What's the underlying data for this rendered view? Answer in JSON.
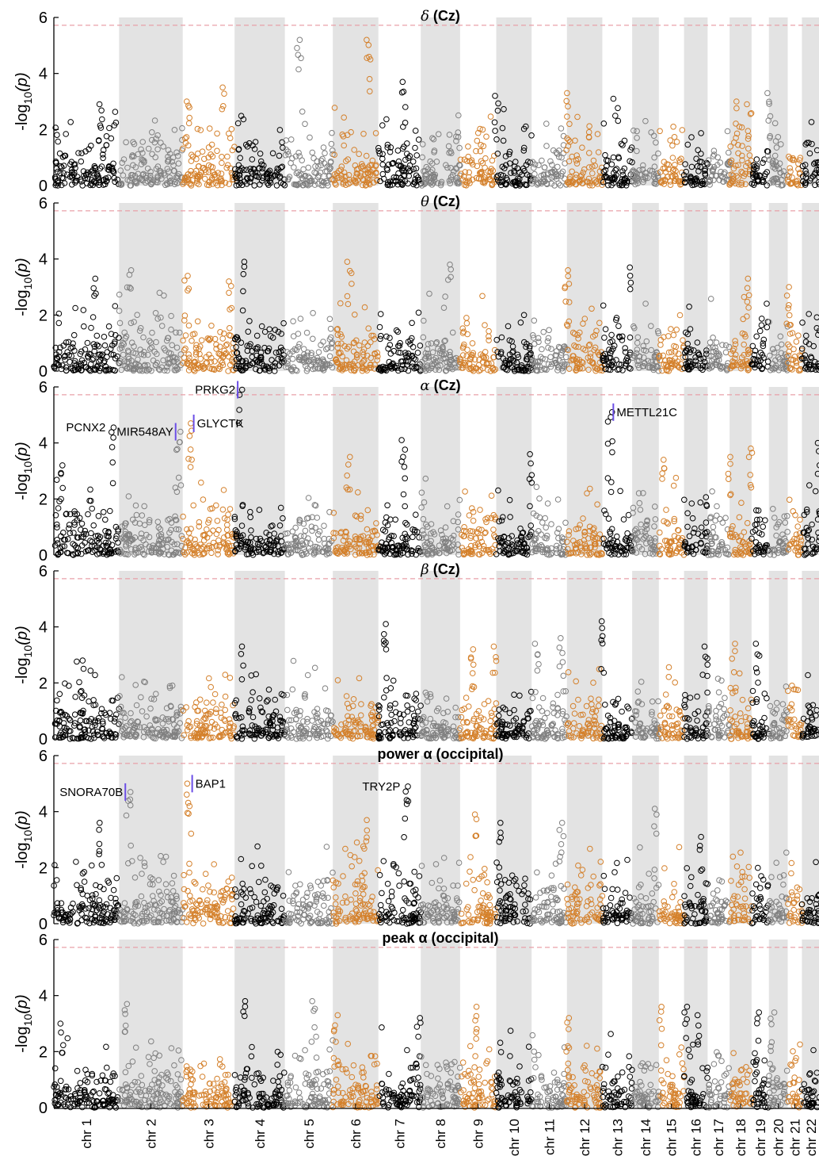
{
  "figure": {
    "ylabel_prefix": "-log",
    "ylabel_sub": "10",
    "ylabel_suffix": "(p)"
  },
  "chart_data": {
    "type": "scatter",
    "chart_kind": "manhattan",
    "ylim": [
      0,
      6
    ],
    "yticks": [
      0,
      2,
      4,
      6
    ],
    "significance_threshold": 5.72,
    "threshold_style": "dashed pink line",
    "grid": false,
    "marker": "open circle",
    "colors": {
      "black": "#000000",
      "gray": "#808080",
      "orange": "#d4802b",
      "shade": "#e3e3e3",
      "threshold": "#e8a0a8",
      "marker_line": "#6b4ee6"
    },
    "chromosomes": [
      {
        "label": "chr 1",
        "start": 0.0,
        "end": 0.083,
        "color": "black"
      },
      {
        "label": "chr 2",
        "start": 0.083,
        "end": 0.164,
        "color": "gray",
        "shaded": true
      },
      {
        "label": "chr 3",
        "start": 0.164,
        "end": 0.23,
        "color": "orange"
      },
      {
        "label": "chr 4",
        "start": 0.23,
        "end": 0.294,
        "color": "black",
        "shaded": true
      },
      {
        "label": "chr 5",
        "start": 0.294,
        "end": 0.355,
        "color": "gray"
      },
      {
        "label": "chr 6",
        "start": 0.355,
        "end": 0.413,
        "color": "orange",
        "shaded": true
      },
      {
        "label": "chr 7",
        "start": 0.413,
        "end": 0.467,
        "color": "black"
      },
      {
        "label": "chr 8",
        "start": 0.467,
        "end": 0.517,
        "color": "gray",
        "shaded": true
      },
      {
        "label": "chr 9",
        "start": 0.517,
        "end": 0.563,
        "color": "orange"
      },
      {
        "label": "chr 10",
        "start": 0.563,
        "end": 0.608,
        "color": "black",
        "shaded": true
      },
      {
        "label": "chr 11",
        "start": 0.608,
        "end": 0.653,
        "color": "gray"
      },
      {
        "label": "chr 12",
        "start": 0.653,
        "end": 0.698,
        "color": "orange",
        "shaded": true
      },
      {
        "label": "chr 13",
        "start": 0.698,
        "end": 0.736,
        "color": "black"
      },
      {
        "label": "chr 14",
        "start": 0.736,
        "end": 0.77,
        "color": "gray",
        "shaded": true
      },
      {
        "label": "chr 15",
        "start": 0.77,
        "end": 0.802,
        "color": "orange"
      },
      {
        "label": "chr 16",
        "start": 0.802,
        "end": 0.832,
        "color": "black",
        "shaded": true
      },
      {
        "label": "chr 17",
        "start": 0.832,
        "end": 0.86,
        "color": "gray"
      },
      {
        "label": "chr 18",
        "start": 0.86,
        "end": 0.888,
        "color": "orange",
        "shaded": true
      },
      {
        "label": "chr 19",
        "start": 0.888,
        "end": 0.91,
        "color": "black"
      },
      {
        "label": "chr 20",
        "start": 0.91,
        "end": 0.934,
        "color": "gray",
        "shaded": true
      },
      {
        "label": "chr 21",
        "start": 0.934,
        "end": 0.952,
        "color": "orange"
      },
      {
        "label": "chr 22",
        "start": 0.952,
        "end": 0.975,
        "color": "black",
        "shaded": true
      }
    ],
    "panels": [
      {
        "title_symbol": "δ",
        "title_text": " (Cz)",
        "title_italic_symbol": true,
        "seed": 11,
        "peaks": [
          {
            "pos": 0.312,
            "y": 5.2
          },
          {
            "pos": 0.4,
            "y": 5.2
          },
          {
            "pos": 0.445,
            "y": 3.7
          },
          {
            "pos": 0.214,
            "y": 3.5
          },
          {
            "pos": 0.563,
            "y": 3.2
          },
          {
            "pos": 0.655,
            "y": 3.3
          },
          {
            "pos": 0.715,
            "y": 3.1
          },
          {
            "pos": 0.17,
            "y": 3.0
          },
          {
            "pos": 0.06,
            "y": 2.9
          },
          {
            "pos": 0.885,
            "y": 2.9
          },
          {
            "pos": 0.868,
            "y": 3.0
          },
          {
            "pos": 0.91,
            "y": 3.3
          }
        ],
        "labels": []
      },
      {
        "title_symbol": "θ",
        "title_text": " (Cz)",
        "title_italic_symbol": true,
        "seed": 23,
        "peaks": [
          {
            "pos": 0.242,
            "y": 3.9
          },
          {
            "pos": 0.376,
            "y": 3.9
          },
          {
            "pos": 0.504,
            "y": 3.8
          },
          {
            "pos": 0.096,
            "y": 3.6
          },
          {
            "pos": 0.735,
            "y": 3.7
          },
          {
            "pos": 0.653,
            "y": 3.6
          },
          {
            "pos": 0.052,
            "y": 3.3
          },
          {
            "pos": 0.169,
            "y": 3.4
          },
          {
            "pos": 0.223,
            "y": 3.2
          },
          {
            "pos": 0.884,
            "y": 3.3
          },
          {
            "pos": 0.935,
            "y": 3.0
          }
        ],
        "labels": []
      },
      {
        "title_symbol": "α",
        "title_text": " (Cz)",
        "title_italic_symbol": true,
        "seed": 37,
        "peaks": [
          {
            "pos": 0.238,
            "y": 5.9
          },
          {
            "pos": 0.174,
            "y": 4.7
          },
          {
            "pos": 0.159,
            "y": 4.4
          },
          {
            "pos": 0.073,
            "y": 4.55
          },
          {
            "pos": 0.708,
            "y": 5.1
          },
          {
            "pos": 0.445,
            "y": 4.1
          },
          {
            "pos": 0.012,
            "y": 3.2
          },
          {
            "pos": 0.886,
            "y": 3.8
          },
          {
            "pos": 0.86,
            "y": 3.5
          },
          {
            "pos": 0.974,
            "y": 4.0
          },
          {
            "pos": 0.607,
            "y": 3.6
          },
          {
            "pos": 0.374,
            "y": 3.5
          },
          {
            "pos": 0.777,
            "y": 3.4
          }
        ],
        "labels": [
          {
            "text": "PRKG2",
            "pos": 0.238,
            "y": 5.9,
            "side": "left",
            "marker": true
          },
          {
            "text": "GLYCTK",
            "pos": 0.174,
            "y": 4.7,
            "side": "right",
            "marker": true
          },
          {
            "text": "MIR548AY",
            "pos": 0.159,
            "y": 4.4,
            "side": "left",
            "marker": true
          },
          {
            "text": "PCNX2",
            "pos": 0.073,
            "y": 4.55,
            "side": "left",
            "marker": false
          },
          {
            "text": "METTL21C",
            "pos": 0.708,
            "y": 5.1,
            "side": "right",
            "marker": true
          }
        ]
      },
      {
        "title_symbol": "β",
        "title_text": " (Cz)",
        "title_italic_symbol": true,
        "seed": 53,
        "peaks": [
          {
            "pos": 0.699,
            "y": 4.2
          },
          {
            "pos": 0.422,
            "y": 4.1
          },
          {
            "pos": 0.24,
            "y": 3.3
          },
          {
            "pos": 0.646,
            "y": 3.6
          },
          {
            "pos": 0.532,
            "y": 3.2
          },
          {
            "pos": 0.56,
            "y": 3.3
          },
          {
            "pos": 0.614,
            "y": 3.4
          },
          {
            "pos": 0.83,
            "y": 3.3
          },
          {
            "pos": 0.864,
            "y": 3.4
          },
          {
            "pos": 0.895,
            "y": 3.4
          },
          {
            "pos": 0.035,
            "y": 2.8
          }
        ],
        "labels": []
      },
      {
        "title_symbol": "",
        "title_text": "power α (occipital)",
        "title_italic_symbol": false,
        "seed": 71,
        "peaks": [
          {
            "pos": 0.172,
            "y": 5.0
          },
          {
            "pos": 0.095,
            "y": 4.7
          },
          {
            "pos": 0.448,
            "y": 4.9
          },
          {
            "pos": 0.767,
            "y": 4.1
          },
          {
            "pos": 0.537,
            "y": 3.9
          },
          {
            "pos": 0.057,
            "y": 3.6
          },
          {
            "pos": 0.566,
            "y": 3.6
          },
          {
            "pos": 0.396,
            "y": 3.7
          },
          {
            "pos": 0.646,
            "y": 3.6
          },
          {
            "pos": 0.984,
            "y": 3.3
          },
          {
            "pos": 0.825,
            "y": 3.1
          }
        ],
        "labels": [
          {
            "text": "BAP1",
            "pos": 0.172,
            "y": 5.0,
            "side": "right",
            "marker": true
          },
          {
            "text": "SNORA70B",
            "pos": 0.095,
            "y": 4.7,
            "side": "left",
            "marker": true
          },
          {
            "text": "TRY2P",
            "pos": 0.448,
            "y": 4.9,
            "side": "left",
            "marker": false
          }
        ]
      },
      {
        "title_symbol": "",
        "title_text": "peak α (occipital)",
        "title_italic_symbol": false,
        "seed": 89,
        "peaks": [
          {
            "pos": 0.241,
            "y": 3.8
          },
          {
            "pos": 0.331,
            "y": 3.8
          },
          {
            "pos": 0.09,
            "y": 3.7
          },
          {
            "pos": 0.803,
            "y": 3.6
          },
          {
            "pos": 0.773,
            "y": 3.6
          },
          {
            "pos": 0.537,
            "y": 3.6
          },
          {
            "pos": 0.359,
            "y": 3.3
          },
          {
            "pos": 0.821,
            "y": 3.3
          },
          {
            "pos": 0.654,
            "y": 3.2
          },
          {
            "pos": 0.465,
            "y": 3.2
          },
          {
            "pos": 0.895,
            "y": 3.4
          },
          {
            "pos": 0.914,
            "y": 3.4
          },
          {
            "pos": 0.01,
            "y": 3.0
          }
        ],
        "labels": []
      }
    ]
  }
}
